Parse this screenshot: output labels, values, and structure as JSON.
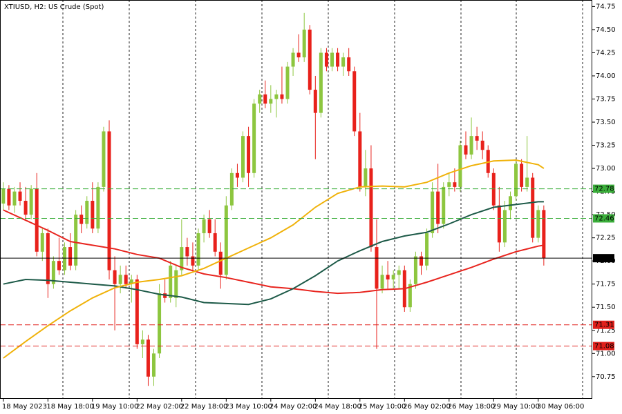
{
  "chart_data": {
    "type": "candlestick",
    "title": "XTIUSD, H2:  US Crude (Spot)",
    "up_color": "#8dc63f",
    "down_color": "#e8211b",
    "ylim": [
      70.51,
      74.82
    ],
    "xlim": [
      -0.6,
      105.7
    ],
    "yticks": [
      70.75,
      {
        "value": 71,
        "label": "71.00"
      },
      71.25,
      {
        "value": 71.5,
        "label": "71.50"
      },
      71.75,
      {
        "value": 72,
        "label": "72.00"
      },
      72.25,
      {
        "value": 72.5,
        "label": "72.50"
      },
      72.75,
      {
        "value": 73,
        "label": "73.00"
      },
      73.25,
      {
        "value": 73.5,
        "label": "73.50"
      },
      73.75,
      {
        "value": 74,
        "label": "74.00"
      },
      74.25,
      {
        "value": 74.5,
        "label": "74.50"
      },
      74.75
    ],
    "categories": [
      "18 May 2023",
      null,
      null,
      null,
      null,
      null,
      null,
      null,
      "18 May 18:00",
      null,
      null,
      null,
      null,
      null,
      null,
      null,
      "19 May 10:00",
      null,
      null,
      null,
      null,
      null,
      null,
      null,
      "22 May 02:00",
      null,
      null,
      null,
      null,
      null,
      null,
      null,
      "22 May 18:00",
      null,
      null,
      null,
      null,
      null,
      null,
      null,
      "23 May 10:00",
      null,
      null,
      null,
      null,
      null,
      null,
      null,
      "24 May 02:00",
      null,
      null,
      null,
      null,
      null,
      null,
      null,
      "24 May 18:00",
      null,
      null,
      null,
      null,
      null,
      null,
      null,
      "25 May 10:00",
      null,
      null,
      null,
      null,
      null,
      null,
      null,
      "26 May 02:00",
      null,
      null,
      null,
      null,
      null,
      null,
      null,
      "26 May 18:00",
      null,
      null,
      null,
      null,
      null,
      null,
      null,
      "29 May 10:00",
      null,
      null,
      null,
      null,
      null,
      null,
      null,
      "30 May 06:00",
      null
    ],
    "ohlc": [
      [
        72.62,
        72.85,
        72.55,
        72.78
      ],
      [
        72.78,
        72.82,
        72.55,
        72.6
      ],
      [
        72.6,
        72.8,
        72.52,
        72.75
      ],
      [
        72.75,
        72.85,
        72.6,
        72.65
      ],
      [
        72.65,
        72.8,
        72.45,
        72.5
      ],
      [
        72.5,
        72.82,
        72.45,
        72.78
      ],
      [
        72.78,
        72.95,
        72.05,
        72.1
      ],
      [
        72.1,
        72.35,
        72.0,
        72.3
      ],
      [
        72.3,
        72.35,
        71.6,
        71.75
      ],
      [
        71.75,
        72.05,
        71.7,
        72.0
      ],
      [
        72.0,
        72.25,
        71.85,
        71.9
      ],
      [
        71.9,
        72.2,
        71.85,
        72.15
      ],
      [
        72.15,
        72.3,
        71.9,
        71.95
      ],
      [
        71.95,
        72.55,
        71.9,
        72.5
      ],
      [
        72.5,
        72.6,
        72.3,
        72.4
      ],
      [
        72.4,
        72.7,
        72.35,
        72.65
      ],
      [
        72.65,
        72.85,
        72.3,
        72.35
      ],
      [
        72.35,
        72.85,
        72.3,
        72.8
      ],
      [
        72.8,
        73.45,
        72.75,
        73.4
      ],
      [
        73.4,
        73.52,
        71.8,
        71.9
      ],
      [
        71.9,
        72.05,
        71.25,
        71.75
      ],
      [
        71.75,
        71.95,
        71.65,
        71.85
      ],
      [
        71.85,
        71.95,
        71.7,
        71.75
      ],
      [
        71.75,
        71.85,
        71.55,
        71.8
      ],
      [
        71.8,
        71.85,
        71.05,
        71.1
      ],
      [
        71.1,
        71.25,
        70.95,
        71.15
      ],
      [
        71.15,
        71.2,
        70.65,
        70.75
      ],
      [
        70.75,
        71.05,
        70.65,
        71.0
      ],
      [
        71.0,
        71.75,
        70.95,
        71.65
      ],
      [
        71.65,
        71.8,
        71.55,
        71.6
      ],
      [
        71.6,
        72.0,
        71.55,
        71.95
      ],
      [
        71.6,
        71.95,
        71.5,
        71.9
      ],
      [
        71.9,
        72.45,
        71.85,
        72.15
      ],
      [
        72.15,
        72.25,
        71.95,
        72.05
      ],
      [
        72.05,
        72.2,
        71.9,
        71.95
      ],
      [
        71.95,
        72.35,
        71.9,
        72.3
      ],
      [
        72.3,
        72.5,
        72.2,
        72.45
      ],
      [
        72.45,
        72.55,
        72.25,
        72.3
      ],
      [
        72.3,
        72.45,
        72.05,
        72.1
      ],
      [
        72.1,
        72.2,
        71.7,
        71.85
      ],
      [
        71.85,
        72.7,
        71.8,
        72.6
      ],
      [
        72.6,
        73.0,
        72.55,
        72.95
      ],
      [
        72.95,
        73.05,
        72.8,
        72.9
      ],
      [
        72.9,
        73.4,
        72.85,
        73.35
      ],
      [
        73.35,
        73.45,
        72.8,
        72.95
      ],
      [
        72.95,
        73.75,
        72.9,
        73.7
      ],
      [
        73.7,
        73.85,
        73.6,
        73.8
      ],
      [
        73.8,
        73.95,
        73.65,
        73.7
      ],
      [
        73.7,
        73.9,
        73.6,
        73.75
      ],
      [
        73.75,
        73.85,
        73.55,
        73.8
      ],
      [
        73.8,
        74.1,
        73.7,
        73.75
      ],
      [
        73.75,
        74.15,
        73.7,
        74.1
      ],
      [
        74.1,
        74.3,
        74.0,
        74.25
      ],
      [
        74.25,
        74.45,
        74.15,
        74.2
      ],
      [
        74.2,
        74.68,
        74.15,
        74.5
      ],
      [
        74.5,
        74.55,
        73.8,
        73.85
      ],
      [
        73.85,
        74.0,
        73.1,
        73.6
      ],
      [
        73.6,
        74.3,
        73.55,
        74.25
      ],
      [
        74.25,
        74.3,
        74.05,
        74.1
      ],
      [
        74.1,
        74.3,
        74.05,
        74.25
      ],
      [
        74.25,
        74.3,
        74.05,
        74.1
      ],
      [
        74.1,
        74.25,
        74.0,
        74.2
      ],
      [
        74.2,
        74.3,
        74.0,
        74.05
      ],
      [
        74.05,
        74.1,
        73.35,
        73.4
      ],
      [
        73.4,
        73.6,
        72.75,
        72.8
      ],
      [
        72.8,
        73.2,
        72.7,
        73.0
      ],
      [
        73.0,
        73.25,
        72.1,
        72.15
      ],
      [
        72.15,
        72.45,
        71.05,
        71.7
      ],
      [
        71.7,
        71.95,
        71.65,
        71.85
      ],
      [
        71.85,
        72.0,
        71.7,
        71.8
      ],
      [
        71.8,
        71.9,
        71.7,
        71.85
      ],
      [
        71.85,
        71.95,
        71.7,
        71.9
      ],
      [
        71.9,
        71.95,
        71.45,
        71.5
      ],
      [
        71.5,
        71.8,
        71.45,
        71.75
      ],
      [
        71.75,
        72.1,
        71.7,
        72.05
      ],
      [
        72.05,
        72.1,
        71.85,
        71.95
      ],
      [
        71.95,
        72.35,
        71.9,
        72.3
      ],
      [
        72.3,
        72.85,
        72.25,
        72.75
      ],
      [
        72.75,
        73.05,
        72.3,
        72.4
      ],
      [
        72.4,
        72.85,
        72.35,
        72.8
      ],
      [
        72.8,
        72.95,
        72.7,
        72.85
      ],
      [
        72.85,
        73.0,
        72.75,
        72.8
      ],
      [
        72.8,
        73.3,
        72.75,
        73.25
      ],
      [
        73.25,
        73.4,
        73.1,
        73.15
      ],
      [
        73.15,
        73.55,
        73.1,
        73.35
      ],
      [
        73.35,
        73.45,
        73.2,
        73.3
      ],
      [
        73.3,
        73.4,
        73.1,
        73.2
      ],
      [
        73.2,
        73.25,
        72.9,
        72.95
      ],
      [
        72.95,
        73.0,
        72.55,
        72.6
      ],
      [
        72.6,
        72.8,
        72.1,
        72.2
      ],
      [
        72.2,
        72.65,
        72.15,
        72.55
      ],
      [
        72.55,
        72.75,
        72.45,
        72.7
      ],
      [
        72.7,
        73.1,
        72.65,
        73.05
      ],
      [
        73.05,
        73.1,
        72.75,
        72.8
      ],
      [
        72.8,
        73.35,
        72.75,
        72.9
      ],
      [
        72.9,
        72.95,
        72.2,
        72.25
      ],
      [
        72.25,
        72.6,
        72.2,
        72.55
      ],
      [
        72.55,
        72.6,
        71.95,
        72.03
      ]
    ],
    "series": [
      {
        "color": "#e8251f",
        "x": [
          0,
          4,
          8,
          12,
          16,
          20,
          24,
          28,
          32,
          36,
          40,
          44,
          48,
          52,
          56,
          60,
          64,
          68,
          72,
          76,
          80,
          84,
          88,
          92,
          96,
          97
        ],
        "values": [
          72.55,
          72.44,
          72.33,
          72.21,
          72.17,
          72.13,
          72.07,
          72.03,
          71.93,
          71.86,
          71.82,
          71.77,
          71.72,
          71.7,
          71.67,
          71.65,
          71.66,
          71.69,
          71.7,
          71.77,
          71.85,
          71.93,
          72.02,
          72.1,
          72.16,
          72.17
        ]
      },
      {
        "color": "#1d5a48",
        "x": [
          0,
          4,
          8,
          12,
          16,
          20,
          24,
          28,
          32,
          36,
          40,
          44,
          48,
          52,
          56,
          60,
          64,
          68,
          72,
          76,
          80,
          84,
          88,
          92,
          96,
          97
        ],
        "values": [
          71.75,
          71.8,
          71.79,
          71.77,
          71.75,
          71.73,
          71.69,
          71.64,
          71.61,
          71.55,
          71.54,
          71.53,
          71.59,
          71.7,
          71.84,
          72.0,
          72.11,
          72.21,
          72.27,
          72.31,
          72.4,
          72.5,
          72.58,
          72.61,
          72.64,
          72.64
        ]
      },
      {
        "color": "#f0b20a",
        "x": [
          0,
          4,
          8,
          12,
          16,
          20,
          24,
          28,
          32,
          36,
          40,
          44,
          48,
          52,
          56,
          60,
          64,
          68,
          72,
          76,
          80,
          84,
          88,
          92,
          96,
          97
        ],
        "values": [
          70.95,
          71.13,
          71.3,
          71.46,
          71.6,
          71.71,
          71.77,
          71.8,
          71.84,
          71.92,
          72.03,
          72.14,
          72.25,
          72.39,
          72.58,
          72.73,
          72.8,
          72.81,
          72.8,
          72.85,
          72.95,
          73.03,
          73.08,
          73.09,
          73.04,
          73.0
        ]
      }
    ],
    "levels": [
      {
        "value": 72.78,
        "color": "#3aae3a",
        "style": "dashed"
      },
      {
        "value": 72.46,
        "color": "#3aae3a",
        "style": "dashed"
      },
      {
        "value": 72.03,
        "color": "#000000",
        "style": "solid"
      },
      {
        "value": 71.31,
        "color": "#e0201b",
        "style": "dashed"
      },
      {
        "value": 71.08,
        "color": "#e0201b",
        "style": "dashed"
      }
    ]
  }
}
